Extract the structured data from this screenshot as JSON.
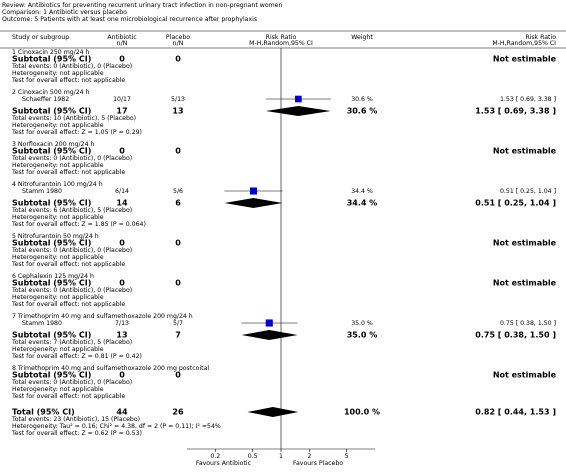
{
  "header": {
    "review": "Review:  Antibiotics for preventing recurrent urinary tract infection in non-pregnant women",
    "comparison": "Comparison:  1 Antibiotic versus placebo",
    "outcome": "Outcome:  5 Patients with at least one microbiological recurrence after prophylaxis"
  },
  "columns": {
    "study": "Study or subgroup",
    "antibiotic": [
      "Antibiotic",
      "n/N"
    ],
    "placebo": [
      "Placebo",
      "n/N"
    ],
    "plot": [
      "Risk Ratio",
      "M-H,Random,95% CI"
    ],
    "weight": "Weight",
    "ratio": [
      "Risk Ratio",
      "M-H,Random,95% CI"
    ]
  },
  "chart_data": {
    "type": "forest",
    "xscale": "log",
    "xlim": [
      0.1,
      10
    ],
    "xticks": [
      0.2,
      0.5,
      1,
      2,
      5
    ],
    "reference": 1,
    "color": "#0000cc",
    "favours": [
      "Favours Antibiotic",
      "Favours Placebo"
    ],
    "groups": [
      {
        "name": "1 Cinoxacin 250 mg/24 h",
        "studies": [],
        "subtotal": {
          "label": "Subtotal (95% CI)",
          "antibiotic": 0,
          "placebo": 0,
          "result": "Not estimable"
        },
        "events": "Total events: 0 (Antibiotic), 0 (Placebo)",
        "heterogeneity": "Heterogeneity: not applicable",
        "test": "Test for overall effect: not applicable"
      },
      {
        "name": "2 Cinoxacin 500 mg/24 h",
        "studies": [
          {
            "name": "Schaeffer 1982",
            "antibiotic": "10/17",
            "placebo": "5/13",
            "weight": 30.6,
            "weight_label": "30.6 %",
            "rr": 1.53,
            "ci": [
              0.69,
              3.38
            ],
            "result": "1.53 [ 0.69, 3.38 ]"
          }
        ],
        "subtotal": {
          "label": "Subtotal (95% CI)",
          "antibiotic": 17,
          "placebo": 13,
          "weight": "30.6 %",
          "rr": 1.53,
          "ci": [
            0.69,
            3.38
          ],
          "result": "1.53 [ 0.69, 3.38 ]"
        },
        "events": "Total events: 10 (Antibiotic), 5 (Placebo)",
        "heterogeneity": "Heterogeneity: not applicable",
        "test": "Test for overall effect: Z = 1.05 (P = 0.29)"
      },
      {
        "name": "3 Norfloxacin 200 mg/24 h",
        "studies": [],
        "subtotal": {
          "label": "Subtotal (95% CI)",
          "antibiotic": 0,
          "placebo": 0,
          "result": "Not estimable"
        },
        "events": "Total events: 0 (Antibiotic), 0 (Placebo)",
        "heterogeneity": "Heterogeneity: not applicable",
        "test": "Test for overall effect: not applicable"
      },
      {
        "name": "4 Nitrofurantoin 100 mg/24 h",
        "studies": [
          {
            "name": "Stamm 1980",
            "antibiotic": "6/14",
            "placebo": "5/6",
            "weight": 34.4,
            "weight_label": "34.4 %",
            "rr": 0.51,
            "ci": [
              0.25,
              1.04
            ],
            "result": "0.51 [ 0.25, 1.04 ]"
          }
        ],
        "subtotal": {
          "label": "Subtotal (95% CI)",
          "antibiotic": 14,
          "placebo": 6,
          "weight": "34.4 %",
          "rr": 0.51,
          "ci": [
            0.25,
            1.04
          ],
          "result": "0.51 [ 0.25, 1.04 ]"
        },
        "events": "Total events: 6 (Antibiotic), 5 (Placebo)",
        "heterogeneity": "Heterogeneity: not applicable",
        "test": "Test for overall effect: Z = 1.85 (P = 0.064)"
      },
      {
        "name": "5 Nitrofurantoin 50 mg/24 h",
        "studies": [],
        "subtotal": {
          "label": "Subtotal (95% CI)",
          "antibiotic": 0,
          "placebo": 0,
          "result": "Not estimable"
        },
        "events": "Total events: 0 (Antibiotic), 0 (Placebo)",
        "heterogeneity": "Heterogeneity: not applicable",
        "test": "Test for overall effect: not applicable"
      },
      {
        "name": "6 Cephalexin 125 mg/24 h",
        "studies": [],
        "subtotal": {
          "label": "Subtotal (95% CI)",
          "antibiotic": 0,
          "placebo": 0,
          "result": "Not estimable"
        },
        "events": "Total events: 0 (Antibiotic), 0 (Placebo)",
        "heterogeneity": "Heterogeneity: not applicable",
        "test": "Test for overall effect: not applicable"
      },
      {
        "name": "7 Trimethoprim 40 mg and sulfamethoxazole 200 mg/24 h",
        "studies": [
          {
            "name": "Stamm 1980",
            "antibiotic": "7/13",
            "placebo": "5/7",
            "weight": 35.0,
            "weight_label": "35.0 %",
            "rr": 0.75,
            "ci": [
              0.38,
              1.5
            ],
            "result": "0.75 [ 0.38, 1.50 ]"
          }
        ],
        "subtotal": {
          "label": "Subtotal (95% CI)",
          "antibiotic": 13,
          "placebo": 7,
          "weight": "35.0 %",
          "rr": 0.75,
          "ci": [
            0.38,
            1.5
          ],
          "result": "0.75 [ 0.38, 1.50 ]"
        },
        "events": "Total events: 7 (Antibiotic), 5 (Placebo)",
        "heterogeneity": "Heterogeneity: not applicable",
        "test": "Test for overall effect: Z = 0.81 (P = 0.42)"
      },
      {
        "name": "8 Trimethoprim 40 mg and sulfamethoxazole 200 mg postcoital",
        "studies": [],
        "subtotal": {
          "label": "Subtotal (95% CI)",
          "antibiotic": 0,
          "placebo": 0,
          "result": "Not estimable"
        },
        "events": "Total events: 0 (Antibiotic), 0 (Placebo)",
        "heterogeneity": "Heterogeneity: not applicable",
        "test": "Test for overall effect: not applicable"
      }
    ],
    "total": {
      "label": "Total (95% CI)",
      "antibiotic": 44,
      "placebo": 26,
      "weight": "100.0 %",
      "rr": 0.82,
      "ci": [
        0.44,
        1.53
      ],
      "result": "0.82 [ 0.44, 1.53 ]",
      "events": "Total events: 23 (Antibiotic), 15 (Placebo)",
      "heterogeneity": "Heterogeneity: Tau² = 0.16; Chi² = 4.38, df = 2 (P = 0.11); I² =54%",
      "test": "Test for overall effect: Z = 0.62 (P = 0.53)"
    }
  }
}
